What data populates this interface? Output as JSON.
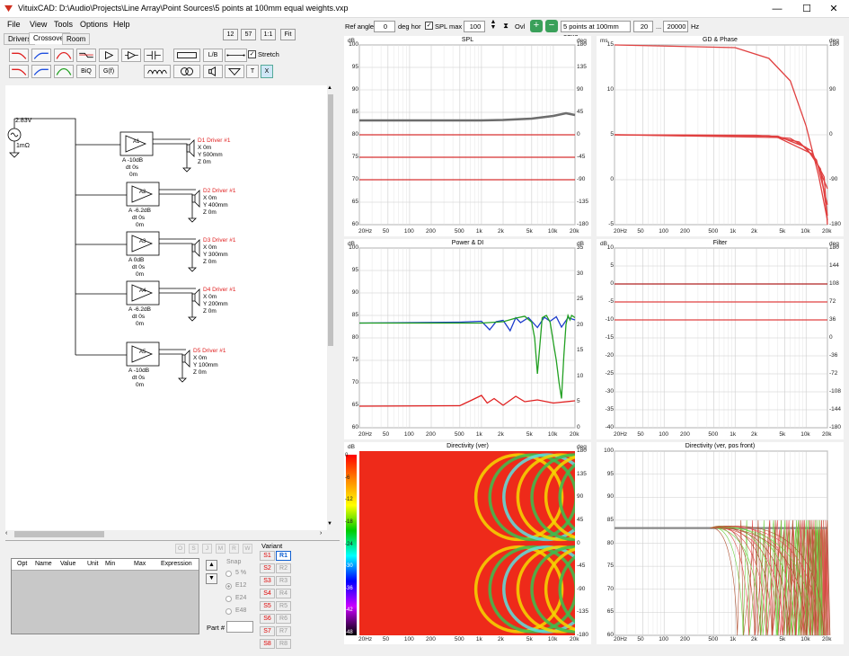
{
  "window": {
    "title": "VituixCAD: D:\\Audio\\Projects\\Line Array\\Point Sources\\5 points at 100mm equal weights.vxp",
    "minimize": "—",
    "maximize": "☐",
    "close": "✕"
  },
  "menu": [
    "File",
    "View",
    "Tools",
    "Options",
    "Help"
  ],
  "tabs": [
    "Drivers",
    "Crossover",
    "Room"
  ],
  "view_buttons": [
    "12",
    "57",
    "1:1",
    "Fit"
  ],
  "tool_labels": {
    "biq": "BiQ",
    "gf": "G(f)",
    "lb": "L/B",
    "t": "T",
    "x": "X",
    "stretch": "Stretch"
  },
  "top_toolbar": {
    "ref_angle_label": "Ref angle",
    "ref_angle": "0",
    "deg_hor": "deg hor",
    "spl_max_label": "SPL max",
    "spl_max": "100",
    "ovl": "Ovl",
    "overlay": "5 points at 100mm equa",
    "f_min": "20",
    "dots": "...",
    "f_max": "20000",
    "hz": "Hz"
  },
  "schematic": {
    "source": {
      "voltage": "2.83V",
      "impedance": "1mΩ"
    },
    "amps": [
      {
        "id": "A1",
        "gain": "A -10dB",
        "dt": "dt 0s",
        "extra": "0m",
        "driver": "D1 Driver #1",
        "x": "X 0m",
        "y": "Y 500mm",
        "z": "Z 0m"
      },
      {
        "id": "A2",
        "gain": "A -6.2dB",
        "dt": "dt 0s",
        "extra": "0m",
        "driver": "D2 Driver #1",
        "x": "X 0m",
        "y": "Y 400mm",
        "z": "Z 0m"
      },
      {
        "id": "A3",
        "gain": "A 0dB",
        "dt": "dt 0s",
        "extra": "0m",
        "driver": "D3 Driver #1",
        "x": "X 0m",
        "y": "Y 300mm",
        "z": "Z 0m"
      },
      {
        "id": "A4",
        "gain": "A -6.2dB",
        "dt": "dt 0s",
        "extra": "0m",
        "driver": "D4 Driver #1",
        "x": "X 0m",
        "y": "Y 200mm",
        "z": "Z 0m"
      },
      {
        "id": "A5",
        "gain": "A -10dB",
        "dt": "dt 0s",
        "extra": "0m",
        "driver": "D5 Driver #1",
        "x": "X 0m",
        "y": "Y 100mm",
        "z": "Z 0m"
      }
    ]
  },
  "parts_table": {
    "headers": [
      "Opt",
      "Name",
      "Value",
      "Unit",
      "Min",
      "Max",
      "Expression"
    ],
    "snap_label": "Snap",
    "snap_options": [
      "5 %",
      "E12",
      "E24",
      "E48"
    ],
    "part_label": "Part #",
    "tool_letters": [
      "O",
      "S",
      "J",
      "M",
      "R",
      "W"
    ],
    "variant_label": "Variant",
    "variants_s": [
      "S1",
      "S2",
      "S3",
      "S4",
      "S5",
      "S6",
      "S7",
      "S8"
    ],
    "variants_r": [
      "R1",
      "R2",
      "R3",
      "R4",
      "R5",
      "R6",
      "R7",
      "R8"
    ]
  },
  "freq_ticks": [
    "20Hz",
    "50",
    "100",
    "200",
    "500",
    "1k",
    "2k",
    "5k",
    "10k",
    "20k"
  ],
  "chart_data": [
    {
      "type": "line",
      "title": "SPL",
      "ylabel_left": "dB",
      "ylabel_right": "deg",
      "ylim": [
        60,
        100
      ],
      "y2lim": [
        -180,
        180
      ],
      "yticks": [
        "100",
        "95",
        "90",
        "85",
        "80",
        "75",
        "70",
        "65",
        "60"
      ],
      "y2ticks": [
        "180",
        "135",
        "90",
        "45",
        "0",
        "-45",
        "-90",
        "-135",
        "-180"
      ],
      "series": [
        {
          "color": "#6d6d6d",
          "x": [
            20,
            100,
            500,
            1000,
            2000,
            5000,
            10000,
            15000,
            20000
          ],
          "y": [
            83.2,
            83.2,
            83.2,
            83.2,
            83.3,
            83.6,
            84.2,
            84.8,
            84.4
          ]
        },
        {
          "color": "#d83030",
          "x": [
            20,
            20000
          ],
          "y": [
            80,
            80
          ]
        },
        {
          "color": "#d83030",
          "x": [
            20,
            20000
          ],
          "y": [
            75,
            75
          ]
        },
        {
          "color": "#d83030",
          "x": [
            20,
            20000
          ],
          "y": [
            70,
            70
          ]
        }
      ]
    },
    {
      "type": "line",
      "title": "GD & Phase",
      "ylabel_left": "ms",
      "ylabel_right": "deg",
      "ylim": [
        -5,
        15
      ],
      "y2lim": [
        -180,
        180
      ],
      "yticks": [
        "15",
        "10",
        "5",
        "0",
        "-5"
      ],
      "y2ticks": [
        "180",
        "90",
        "0",
        "-90",
        "-180"
      ],
      "series": [
        {
          "color": "#e04040",
          "x": [
            20,
            1000,
            3000,
            6000,
            10000,
            15000,
            20000
          ],
          "y": [
            15,
            14.7,
            13.5,
            11,
            6,
            0.5,
            -4.5
          ]
        },
        {
          "color": "#e04040",
          "x": [
            20,
            2000,
            6000,
            12000,
            20000
          ],
          "y": [
            5,
            4.95,
            4.6,
            3.2,
            -1
          ]
        },
        {
          "color": "#e04040",
          "x": [
            20,
            3000,
            8000,
            14000,
            20000
          ],
          "y": [
            5,
            4.9,
            4.2,
            2.2,
            -2.8
          ]
        },
        {
          "color": "#e04040",
          "x": [
            20,
            4000,
            10000,
            16000,
            20000
          ],
          "y": [
            5,
            4.85,
            3.6,
            1.2,
            -4
          ]
        },
        {
          "color": "#e04040",
          "x": [
            20,
            4000,
            12000,
            18000,
            20000
          ],
          "y": [
            5,
            4.7,
            2.9,
            0.3,
            -5
          ]
        }
      ]
    },
    {
      "type": "line",
      "title": "Power & DI",
      "ylabel_left": "dB",
      "ylabel_right": "dB",
      "ylim": [
        60,
        100
      ],
      "y2lim": [
        0,
        35
      ],
      "yticks": [
        "100",
        "95",
        "90",
        "85",
        "80",
        "75",
        "70",
        "65",
        "60"
      ],
      "y2ticks": [
        "35",
        "30",
        "25",
        "20",
        "15",
        "10",
        "5",
        "0"
      ],
      "series": [
        {
          "color": "#1c3ccc",
          "x": [
            20,
            500,
            1000,
            1300,
            1600,
            2000,
            2500,
            3000,
            3500,
            4500,
            6000,
            7500,
            9000,
            11000,
            13000,
            16000,
            20000
          ],
          "y": [
            83.3,
            83.5,
            83.7,
            81.8,
            83.6,
            83.9,
            81.6,
            84.5,
            83.4,
            84.5,
            82.3,
            84.6,
            83.7,
            84.7,
            82.4,
            84.5,
            84.0
          ]
        },
        {
          "color": "#22a022",
          "x": [
            20,
            1000,
            2000,
            3000,
            4000,
            5000,
            5500,
            6000,
            7000,
            8000,
            9000,
            10000,
            11000,
            12000,
            13000,
            14000,
            15000,
            16000,
            17000,
            18000,
            20000
          ],
          "y": [
            83.3,
            83.3,
            83.6,
            84.4,
            84.8,
            83.5,
            80,
            72,
            84.5,
            85,
            83.5,
            79,
            75,
            70,
            66.5,
            76,
            83,
            85,
            84,
            85,
            84.5
          ]
        },
        {
          "color": "#e02020",
          "x": [
            20,
            500,
            700,
            1000,
            1200,
            1500,
            2000,
            3000,
            4000,
            6000,
            10000,
            20000
          ],
          "y": [
            64.8,
            64.9,
            66,
            67.2,
            65.5,
            66.5,
            65,
            67,
            65.8,
            66.2,
            65.5,
            66
          ]
        }
      ]
    },
    {
      "type": "line",
      "title": "Filter",
      "ylabel_left": "dB",
      "ylabel_right": "deg",
      "ylim": [
        -40,
        10
      ],
      "y2lim": [
        -180,
        180
      ],
      "yticks": [
        "10",
        "5",
        "0",
        "-5",
        "-10",
        "-15",
        "-20",
        "-25",
        "-30",
        "-35",
        "-40"
      ],
      "y2ticks": [
        "180",
        "144",
        "108",
        "72",
        "36",
        "0",
        "-36",
        "-72",
        "-108",
        "-144",
        "-180"
      ],
      "series": [
        {
          "color": "#b02020",
          "x": [
            20,
            20000
          ],
          "y": [
            0,
            0
          ]
        },
        {
          "color": "#e04040",
          "x": [
            20,
            20000
          ],
          "y": [
            -5,
            -5
          ]
        },
        {
          "color": "#e04040",
          "x": [
            20,
            20000
          ],
          "y": [
            -10,
            -10
          ]
        }
      ]
    },
    {
      "type": "heatmap",
      "title": "Directivity (ver)",
      "ylabel_left": "dB",
      "ylabel_right": "deg",
      "scale": [
        "0",
        "-6",
        "-12",
        "-18",
        "-24",
        "-30",
        "-36",
        "-42",
        "-48"
      ],
      "y2ticks": [
        "180",
        "135",
        "90",
        "45",
        "0",
        "-45",
        "-90",
        "-135",
        "-180"
      ]
    },
    {
      "type": "line",
      "title": "Directivity (ver, pos front)",
      "yticks": [
        "100",
        "95",
        "90",
        "85",
        "80",
        "75",
        "70",
        "65",
        "60"
      ],
      "ylim": [
        60,
        100
      ]
    }
  ]
}
